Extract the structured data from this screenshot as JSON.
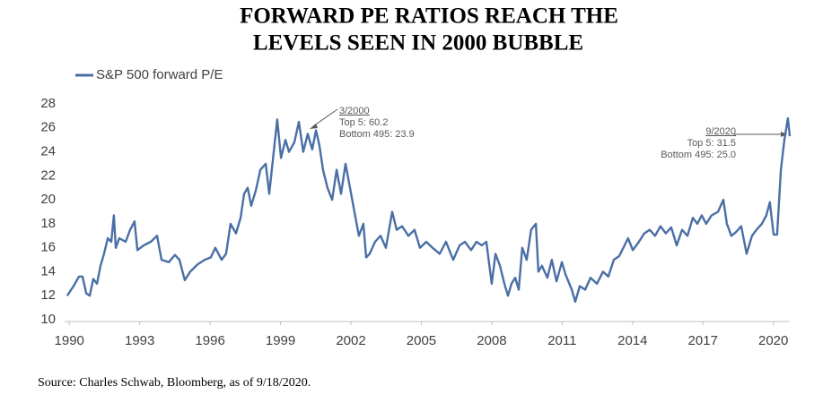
{
  "chart_data": {
    "type": "line",
    "title": [
      "FORWARD PE RATIOS REACH THE",
      "LEVELS SEEN IN 2000 BUBBLE"
    ],
    "source": "Source: Charles Schwab, Bloomberg, as of 9/18/2020.",
    "xlim": [
      1989.8,
      2020.7
    ],
    "xticks": [
      1990,
      1993,
      1996,
      1999,
      2002,
      2005,
      2008,
      2011,
      2014,
      2017,
      2020
    ],
    "ylim": [
      10,
      28
    ],
    "yticks": [
      10,
      12,
      14,
      16,
      18,
      20,
      22,
      24,
      26,
      28
    ],
    "grid": false,
    "legend": "top-left",
    "annotations": [
      [
        "3/2000",
        "Top 5: 60.2",
        "Bottom 495: 23.9"
      ],
      [
        "9/2020",
        "Top 5: 31.5",
        "Bottom 495: 25.0"
      ]
    ],
    "x": [
      1989.91,
      1990.18,
      1990.41,
      1990.56,
      1990.72,
      1990.87,
      1991.02,
      1991.18,
      1991.33,
      1991.48,
      1991.64,
      1991.79,
      1991.9,
      1991.98,
      1992.13,
      1992.4,
      1992.59,
      1992.78,
      1992.9,
      1993.17,
      1993.47,
      1993.74,
      1993.93,
      1994.24,
      1994.5,
      1994.69,
      1994.92,
      1995.15,
      1995.46,
      1995.77,
      1996.03,
      1996.22,
      1996.49,
      1996.68,
      1996.87,
      1997.1,
      1997.3,
      1997.45,
      1997.6,
      1997.75,
      1997.95,
      1998.14,
      1998.37,
      1998.52,
      1998.71,
      1998.86,
      1999.02,
      1999.21,
      1999.36,
      1999.59,
      1999.78,
      1999.97,
      2000.16,
      2000.35,
      2000.51,
      2000.66,
      2000.81,
      2001.0,
      2001.2,
      2001.39,
      2001.58,
      2001.77,
      2001.96,
      2002.15,
      2002.34,
      2002.53,
      2002.65,
      2002.8,
      2003.03,
      2003.26,
      2003.49,
      2003.76,
      2003.95,
      2004.18,
      2004.45,
      2004.71,
      2004.94,
      2005.21,
      2005.48,
      2005.78,
      2006.05,
      2006.36,
      2006.63,
      2006.86,
      2007.12,
      2007.35,
      2007.58,
      2007.77,
      2008.0,
      2008.16,
      2008.35,
      2008.54,
      2008.69,
      2008.84,
      2009.0,
      2009.15,
      2009.3,
      2009.49,
      2009.68,
      2009.88,
      2009.99,
      2010.14,
      2010.37,
      2010.56,
      2010.76,
      2010.99,
      2011.14,
      2011.41,
      2011.56,
      2011.75,
      2011.98,
      2012.21,
      2012.48,
      2012.74,
      2012.97,
      2013.2,
      2013.43,
      2013.66,
      2013.81,
      2014.01,
      2014.27,
      2014.5,
      2014.73,
      2014.96,
      2015.19,
      2015.42,
      2015.65,
      2015.88,
      2016.11,
      2016.34,
      2016.57,
      2016.76,
      2016.95,
      2017.14,
      2017.37,
      2017.64,
      2017.87,
      2018.02,
      2018.21,
      2018.4,
      2018.63,
      2018.86,
      2019.09,
      2019.28,
      2019.51,
      2019.7,
      2019.85,
      2020.01,
      2020.16,
      2020.32,
      2020.47,
      2020.62,
      2020.7
    ],
    "series": [
      {
        "name": "S&P 500 forward P/E",
        "color": "#4a6fa5",
        "values": [
          12.0,
          12.8,
          13.6,
          13.6,
          12.2,
          12.0,
          13.4,
          13.0,
          14.5,
          15.5,
          16.8,
          16.5,
          18.7,
          16.0,
          16.8,
          16.5,
          17.5,
          18.2,
          15.8,
          16.2,
          16.5,
          17.0,
          15.0,
          14.8,
          15.4,
          15.0,
          13.3,
          14.0,
          14.6,
          15.0,
          15.2,
          16.0,
          15.0,
          15.5,
          18.0,
          17.2,
          18.5,
          20.5,
          21.0,
          19.5,
          20.8,
          22.5,
          23.0,
          20.5,
          24.0,
          26.7,
          23.5,
          25.0,
          24.0,
          24.8,
          26.5,
          24.0,
          25.5,
          24.2,
          25.8,
          24.5,
          22.5,
          21.0,
          20.0,
          22.5,
          20.5,
          23.0,
          21.0,
          19.0,
          17.0,
          18.0,
          15.2,
          15.5,
          16.5,
          17.0,
          16.0,
          19.0,
          17.5,
          17.8,
          17.0,
          17.5,
          16.0,
          16.5,
          16.0,
          15.5,
          16.5,
          15.0,
          16.2,
          16.5,
          15.8,
          16.5,
          16.2,
          16.5,
          13.0,
          15.5,
          14.5,
          13.0,
          12.0,
          13.0,
          13.5,
          12.5,
          16.0,
          15.0,
          17.5,
          18.0,
          14.0,
          14.5,
          13.5,
          15.0,
          13.2,
          14.8,
          13.8,
          12.5,
          11.5,
          12.8,
          12.5,
          13.5,
          13.0,
          14.0,
          13.6,
          15.0,
          15.3,
          16.2,
          16.8,
          15.8,
          16.5,
          17.2,
          17.5,
          17.0,
          17.8,
          17.2,
          17.7,
          16.2,
          17.5,
          17.0,
          18.5,
          18.0,
          18.7,
          18.0,
          18.7,
          19.0,
          20.0,
          18.0,
          17.0,
          17.3,
          17.8,
          15.5,
          17.0,
          17.5,
          18.0,
          18.7,
          19.8,
          17.1,
          17.1,
          22.5,
          25.0,
          26.8,
          25.3
        ]
      }
    ]
  }
}
